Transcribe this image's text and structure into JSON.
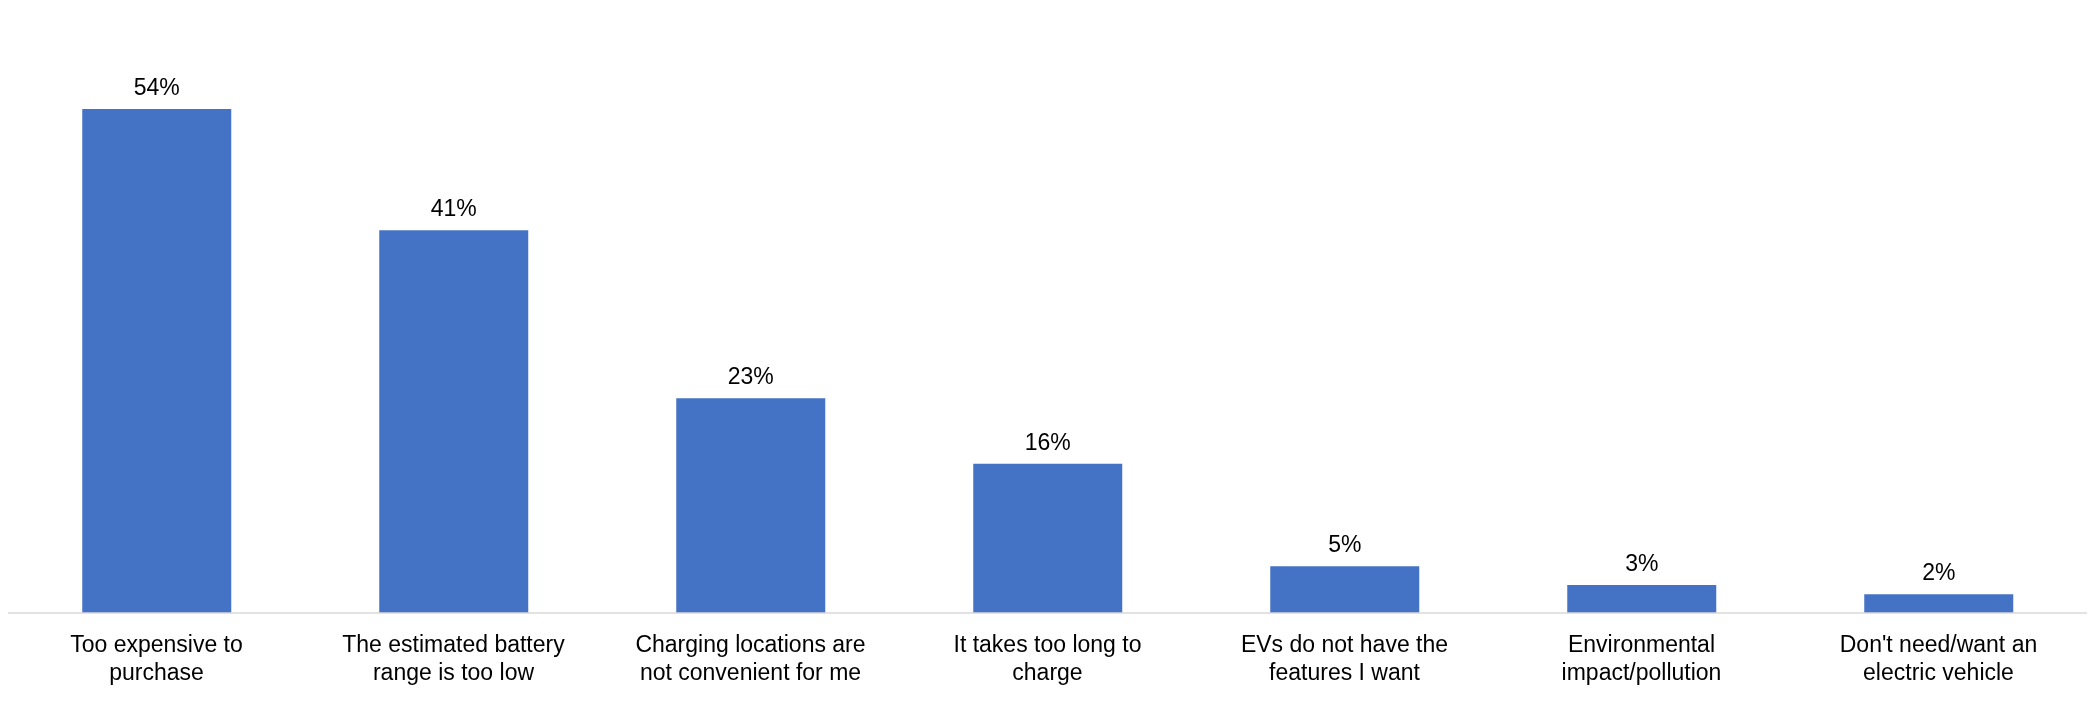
{
  "chart_data": {
    "type": "bar",
    "categories": [
      "Too expensive to purchase",
      "The estimated battery range is too low",
      "Charging locations are not convenient for me",
      "It takes too long to charge",
      "EVs do not have the features I want",
      "Environmental impact/pollution",
      "Don't need/want an electric vehicle"
    ],
    "values": [
      54,
      41,
      23,
      16,
      5,
      3,
      2
    ],
    "value_labels": [
      "54%",
      "41%",
      "23%",
      "16%",
      "5%",
      "3%",
      "2%"
    ],
    "color": "#4472c4",
    "grid": false,
    "legend": false
  }
}
